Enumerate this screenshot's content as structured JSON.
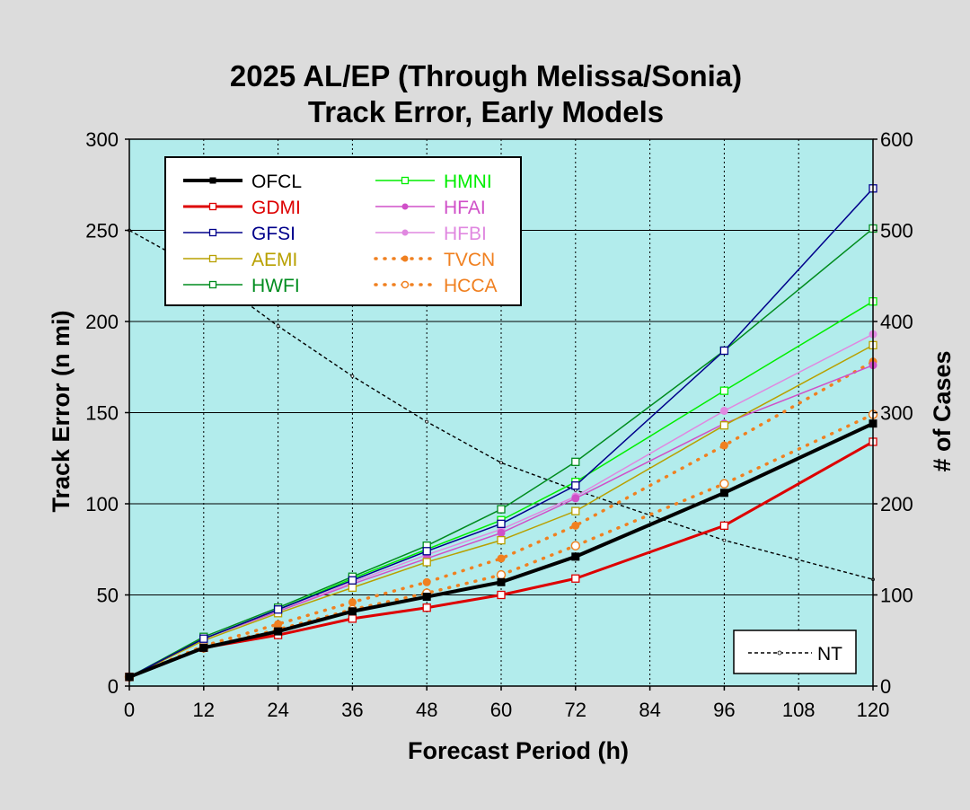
{
  "chart_data": {
    "type": "line",
    "title_line1": "2025 AL/EP (Through Melissa/Sonia)",
    "title_line2": "Track Error, Early Models",
    "xlabel": "Forecast Period (h)",
    "ylabel": "Track Error (n mi)",
    "y2label": "# of Cases",
    "x": [
      0,
      12,
      24,
      36,
      48,
      60,
      72,
      96,
      120
    ],
    "x_ticks": [
      0,
      12,
      24,
      36,
      48,
      60,
      72,
      84,
      96,
      108,
      120
    ],
    "x_tick_labels": [
      "0",
      "12",
      "24",
      "36",
      "48",
      "60",
      "72",
      "84",
      "96",
      "108",
      "120"
    ],
    "xlim": [
      0,
      120
    ],
    "y_ticks": [
      0,
      50,
      100,
      150,
      200,
      250,
      300
    ],
    "y_tick_labels": [
      "0",
      "50",
      "100",
      "150",
      "200",
      "250",
      "300"
    ],
    "ylim": [
      0,
      300
    ],
    "y2_ticks": [
      0,
      100,
      200,
      300,
      400,
      500,
      600
    ],
    "y2_tick_labels": [
      "0",
      "100",
      "200",
      "300",
      "400",
      "500",
      "600"
    ],
    "y2lim": [
      0,
      600
    ],
    "grid": true,
    "legend_position": "top-left",
    "colors": {
      "background": "#dcdcdc",
      "plot_area": "#b2ecec",
      "grid": "#000000"
    },
    "series": [
      {
        "name": "OFCL",
        "color": "#000000",
        "style": "solid",
        "width": 4,
        "marker": "filled-square",
        "values": [
          5,
          21,
          30,
          41,
          49,
          57,
          71,
          106,
          144
        ]
      },
      {
        "name": "GDMI",
        "color": "#dd0000",
        "style": "solid",
        "width": 3,
        "marker": "open-square",
        "values": [
          5,
          21,
          28,
          37,
          43,
          50,
          59,
          88,
          134
        ]
      },
      {
        "name": "GFSI",
        "color": "#00008b",
        "style": "solid",
        "width": 1.5,
        "marker": "open-square",
        "values": [
          5,
          26,
          42,
          58,
          74,
          89,
          110,
          184,
          273
        ]
      },
      {
        "name": "AEMI",
        "color": "#b8a000",
        "style": "solid",
        "width": 1.5,
        "marker": "open-square",
        "values": [
          5,
          25,
          40,
          54,
          68,
          80,
          96,
          143,
          187
        ]
      },
      {
        "name": "HWFI",
        "color": "#008c1e",
        "style": "solid",
        "width": 1.5,
        "marker": "open-square",
        "values": [
          5,
          27,
          43,
          60,
          77,
          97,
          123,
          184,
          251
        ]
      },
      {
        "name": "HMNI",
        "color": "#00ee00",
        "style": "solid",
        "width": 1.5,
        "marker": "open-square",
        "values": [
          5,
          26,
          42,
          59,
          75,
          91,
          112,
          162,
          211
        ]
      },
      {
        "name": "HFAI",
        "color": "#d050c8",
        "style": "solid",
        "width": 1.5,
        "marker": "filled-circle",
        "values": [
          5,
          26,
          41,
          56,
          70,
          84,
          103,
          144,
          176
        ]
      },
      {
        "name": "HFBI",
        "color": "#e088e0",
        "style": "solid",
        "width": 1.5,
        "marker": "filled-circle",
        "values": [
          5,
          26,
          41,
          57,
          72,
          86,
          104,
          151,
          193
        ]
      },
      {
        "name": "TVCN",
        "color": "#f08020",
        "style": "dotted",
        "width": 3.5,
        "marker": "filled-circle",
        "values": [
          5,
          22,
          34,
          46,
          57,
          70,
          88,
          132,
          178
        ]
      },
      {
        "name": "HCCA",
        "color": "#f08020",
        "style": "dotted",
        "width": 3.5,
        "marker": "open-circle",
        "values": [
          5,
          21,
          31,
          42,
          51,
          61,
          77,
          111,
          149
        ]
      }
    ],
    "nt_series": {
      "name": "NT",
      "color": "#000000",
      "style": "dashed",
      "axis": "right",
      "values": [
        500,
        455,
        395,
        340,
        290,
        245,
        215,
        160,
        117
      ]
    }
  }
}
